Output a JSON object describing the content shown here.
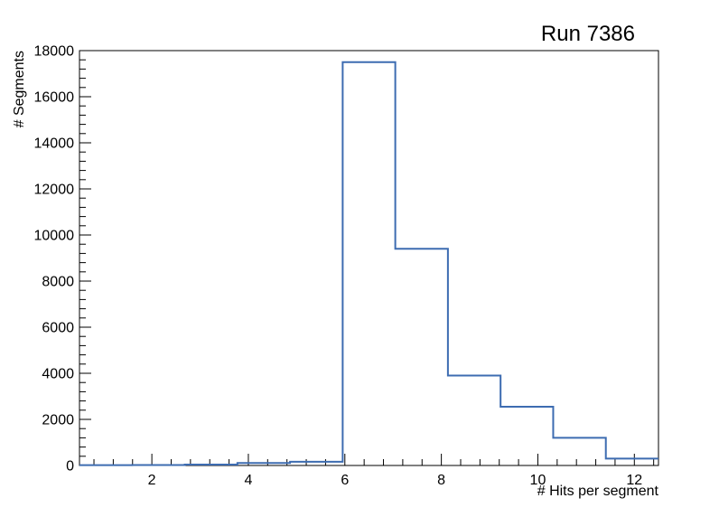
{
  "page": {
    "background": "#ffffff"
  },
  "chart_data": {
    "type": "bar",
    "subtype": "step-histogram",
    "title": "Run 7386",
    "xlabel": "# Hits per segment",
    "ylabel": "# Segments",
    "xlim": [
      0.5,
      12.5
    ],
    "ylim": [
      0,
      18000
    ],
    "x_major_ticks": [
      2,
      4,
      6,
      8,
      10,
      12
    ],
    "x_minor_step": 0.4,
    "y_major_ticks": [
      0,
      2000,
      4000,
      6000,
      8000,
      10000,
      12000,
      14000,
      16000,
      18000
    ],
    "y_minor_step": 400,
    "grid": false,
    "legend_visible": false,
    "line_color": "#3d6cb1",
    "axis_color": "#000000",
    "bin_edges": [
      0.5,
      1.591,
      2.682,
      3.773,
      4.864,
      5.955,
      7.045,
      8.136,
      9.227,
      10.318,
      11.409,
      12.5
    ],
    "counts": [
      15,
      20,
      40,
      110,
      160,
      17500,
      9400,
      3900,
      2550,
      1200,
      300
    ]
  }
}
